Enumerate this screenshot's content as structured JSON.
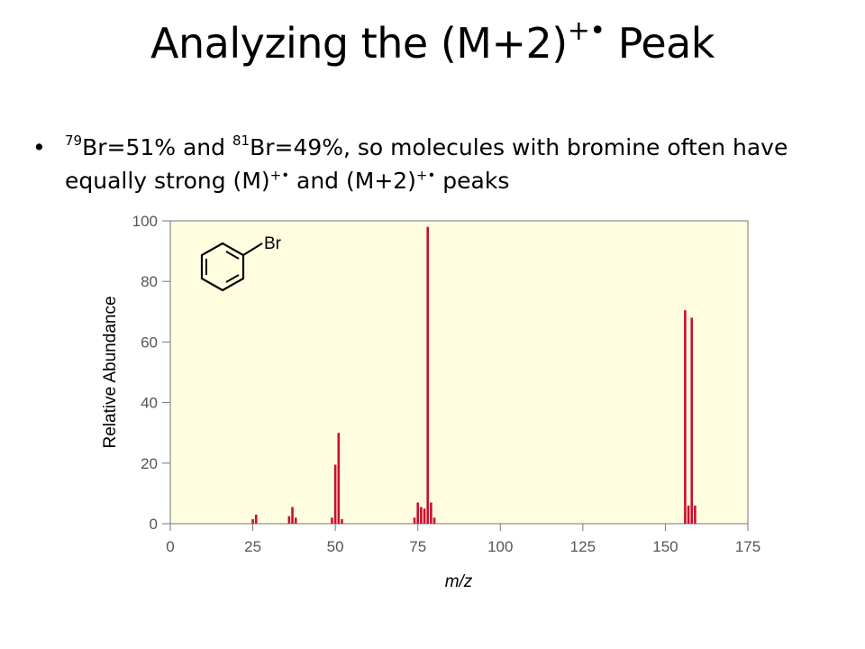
{
  "slide": {
    "title_main": "Analyzing the (M+2)",
    "title_radical": "+•",
    "title_end": " Peak",
    "bullet": {
      "dot": "•",
      "iso1": "79",
      "text1": "Br=51% and ",
      "iso2": "81",
      "text2": "Br=49%, so molecules with bromine often have equally strong (M)",
      "rad1": "+•",
      "text3": " and (M+2)",
      "rad2": "+•",
      "text4": " peaks"
    }
  },
  "chart_data": {
    "type": "bar",
    "xlabel": "m/z",
    "ylabel": "Relative Abundance",
    "xlim": [
      0,
      175
    ],
    "ylim": [
      0,
      100
    ],
    "x_ticks": [
      0,
      25,
      50,
      75,
      100,
      125,
      150,
      175
    ],
    "y_ticks": [
      0,
      20,
      40,
      60,
      80,
      100
    ],
    "structure_label": "Br",
    "colors": {
      "bar": "#c8102e",
      "plot_bg": "#fffde0",
      "axis": "#777777"
    },
    "peaks": [
      {
        "mz": 25,
        "abundance": 1.5
      },
      {
        "mz": 26,
        "abundance": 3
      },
      {
        "mz": 36,
        "abundance": 2.5
      },
      {
        "mz": 37,
        "abundance": 5.5
      },
      {
        "mz": 38,
        "abundance": 2
      },
      {
        "mz": 49,
        "abundance": 2
      },
      {
        "mz": 50,
        "abundance": 19.5
      },
      {
        "mz": 51,
        "abundance": 30
      },
      {
        "mz": 52,
        "abundance": 1.5
      },
      {
        "mz": 74,
        "abundance": 2
      },
      {
        "mz": 75,
        "abundance": 7
      },
      {
        "mz": 76,
        "abundance": 5.5
      },
      {
        "mz": 77,
        "abundance": 5
      },
      {
        "mz": 78,
        "abundance": 98
      },
      {
        "mz": 79,
        "abundance": 7
      },
      {
        "mz": 80,
        "abundance": 2
      },
      {
        "mz": 156,
        "abundance": 70.5
      },
      {
        "mz": 157,
        "abundance": 6
      },
      {
        "mz": 158,
        "abundance": 68
      },
      {
        "mz": 159,
        "abundance": 6
      }
    ]
  }
}
